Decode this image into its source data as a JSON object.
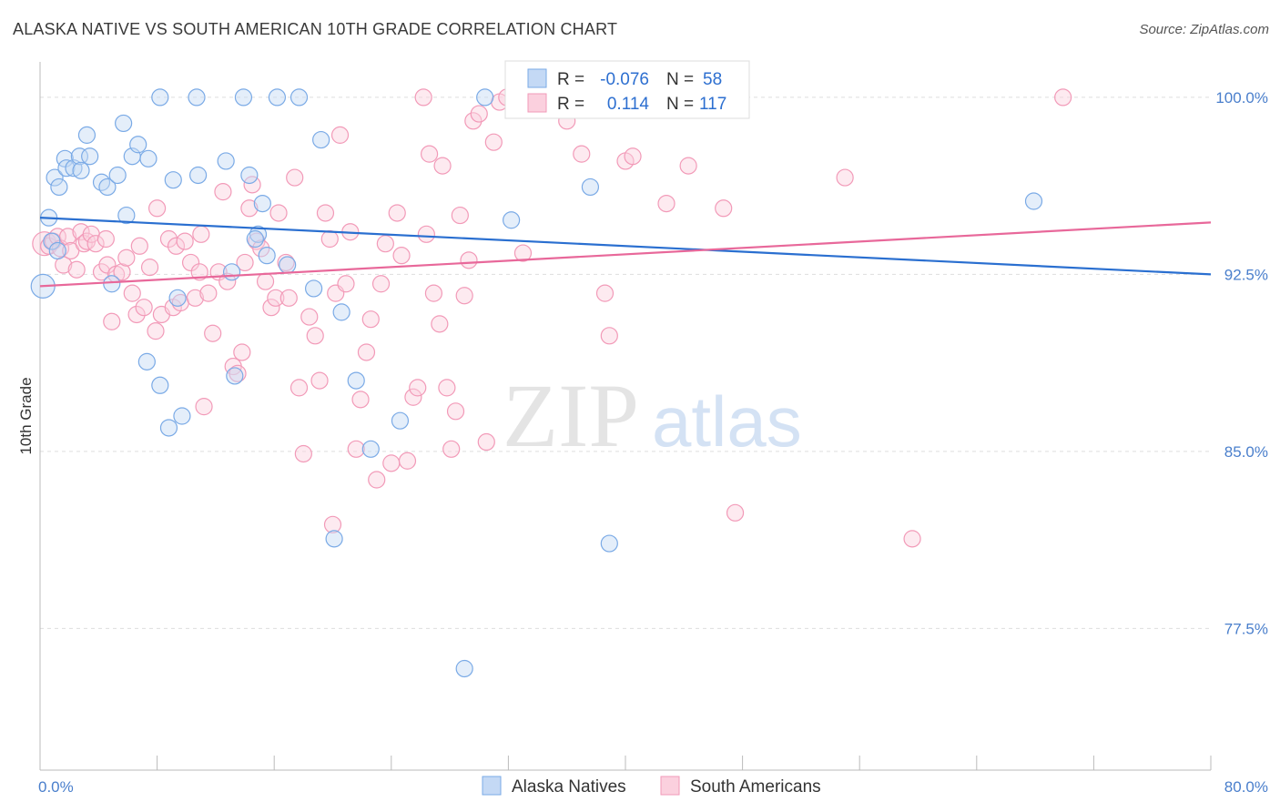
{
  "title": "ALASKA NATIVE VS SOUTH AMERICAN 10TH GRADE CORRELATION CHART",
  "source": "Source: ZipAtlas.com",
  "watermark": {
    "zip": "ZIP",
    "atlas": "atlas"
  },
  "legend_top": {
    "rows": [
      {
        "r_label": "R = ",
        "r_value": "-0.076",
        "n_label": "N = ",
        "n_value": "58"
      },
      {
        "r_label": "R = ",
        "r_value": "0.114",
        "n_label": "N = ",
        "n_value": "117"
      }
    ]
  },
  "legend_bottom": [
    "Alaska Natives",
    "South Americans"
  ],
  "chart_data": {
    "type": "scatter",
    "xlabel": "",
    "ylabel": "10th Grade",
    "xlim": [
      0,
      80
    ],
    "ylim": [
      71.5,
      101.5
    ],
    "x_tick_labels": [
      {
        "value": 0,
        "label": "0.0%"
      },
      {
        "value": 80,
        "label": "80.0%"
      }
    ],
    "y_tick_labels": [
      {
        "value": 100,
        "label": "100.0%"
      },
      {
        "value": 92.5,
        "label": "92.5%"
      },
      {
        "value": 85,
        "label": "85.0%"
      },
      {
        "value": 77.5,
        "label": "77.5%"
      }
    ],
    "colors": {
      "alaska": "#7aaae6",
      "south": "#f29ab8",
      "alaska_line": "#2a6fd0",
      "south_line": "#e8689a"
    },
    "series": [
      {
        "name": "Alaska Natives",
        "trend": {
          "x": [
            0,
            80
          ],
          "y": [
            94.9,
            92.5
          ]
        },
        "points": [
          [
            0.8,
            93.9
          ],
          [
            0.2,
            92.0
          ],
          [
            0.6,
            94.9
          ],
          [
            1.0,
            96.6
          ],
          [
            1.3,
            96.2
          ],
          [
            1.7,
            97.4
          ],
          [
            1.8,
            97.0
          ],
          [
            2.3,
            97.0
          ],
          [
            2.7,
            97.5
          ],
          [
            2.8,
            96.9
          ],
          [
            3.2,
            98.4
          ],
          [
            3.4,
            97.5
          ],
          [
            4.2,
            96.4
          ],
          [
            4.6,
            96.2
          ],
          [
            5.3,
            96.7
          ],
          [
            5.7,
            98.9
          ],
          [
            5.9,
            95.0
          ],
          [
            6.3,
            97.5
          ],
          [
            6.7,
            98.0
          ],
          [
            7.4,
            97.4
          ],
          [
            8.2,
            100.0
          ],
          [
            9.1,
            96.5
          ],
          [
            10.7,
            100.0
          ],
          [
            10.8,
            96.7
          ],
          [
            12.7,
            97.3
          ],
          [
            13.9,
            100.0
          ],
          [
            14.3,
            96.7
          ],
          [
            15.2,
            95.5
          ],
          [
            16.2,
            100.0
          ],
          [
            17.7,
            100.0
          ],
          [
            19.2,
            98.2
          ],
          [
            14.9,
            94.2
          ],
          [
            14.7,
            94.0
          ],
          [
            16.9,
            92.9
          ],
          [
            13.1,
            92.6
          ],
          [
            4.9,
            92.1
          ],
          [
            9.4,
            91.5
          ],
          [
            18.7,
            91.9
          ],
          [
            20.6,
            90.9
          ],
          [
            7.3,
            88.8
          ],
          [
            8.2,
            87.8
          ],
          [
            13.3,
            88.2
          ],
          [
            21.6,
            88.0
          ],
          [
            8.8,
            86.0
          ],
          [
            9.7,
            86.5
          ],
          [
            22.6,
            85.1
          ],
          [
            24.6,
            86.3
          ],
          [
            20.1,
            81.3
          ],
          [
            32.2,
            94.8
          ],
          [
            37.6,
            96.2
          ],
          [
            30.4,
            100.0
          ],
          [
            38.9,
            81.1
          ],
          [
            29.0,
            75.8
          ],
          [
            42.0,
            100.0
          ],
          [
            43.1,
            100.0
          ],
          [
            67.9,
            95.6
          ],
          [
            1.2,
            93.5
          ],
          [
            15.5,
            93.3
          ]
        ]
      },
      {
        "name": "South Americans",
        "trend": {
          "x": [
            0,
            80
          ],
          "y": [
            92.0,
            94.7
          ]
        },
        "points": [
          [
            0.3,
            93.8
          ],
          [
            0.6,
            93.7
          ],
          [
            0.9,
            93.9
          ],
          [
            1.2,
            94.1
          ],
          [
            1.4,
            93.6
          ],
          [
            1.6,
            92.9
          ],
          [
            1.9,
            94.1
          ],
          [
            2.1,
            93.5
          ],
          [
            2.5,
            92.7
          ],
          [
            2.8,
            94.3
          ],
          [
            3.0,
            93.8
          ],
          [
            3.2,
            93.9
          ],
          [
            3.5,
            94.2
          ],
          [
            3.8,
            93.8
          ],
          [
            4.2,
            92.6
          ],
          [
            4.6,
            92.9
          ],
          [
            4.9,
            90.5
          ],
          [
            5.2,
            92.5
          ],
          [
            5.6,
            92.6
          ],
          [
            5.9,
            93.2
          ],
          [
            6.3,
            91.7
          ],
          [
            6.6,
            90.8
          ],
          [
            6.8,
            93.7
          ],
          [
            7.1,
            91.1
          ],
          [
            7.5,
            92.8
          ],
          [
            7.9,
            90.1
          ],
          [
            8.0,
            95.3
          ],
          [
            8.3,
            90.8
          ],
          [
            8.8,
            94.0
          ],
          [
            9.1,
            91.1
          ],
          [
            9.3,
            93.7
          ],
          [
            9.6,
            91.3
          ],
          [
            9.9,
            93.9
          ],
          [
            10.3,
            93.0
          ],
          [
            10.6,
            91.5
          ],
          [
            10.9,
            92.6
          ],
          [
            11.2,
            86.9
          ],
          [
            11.5,
            91.7
          ],
          [
            11.8,
            90.0
          ],
          [
            12.2,
            92.6
          ],
          [
            12.5,
            96.0
          ],
          [
            12.8,
            92.2
          ],
          [
            13.2,
            88.6
          ],
          [
            13.5,
            88.3
          ],
          [
            13.8,
            89.2
          ],
          [
            14.0,
            93.0
          ],
          [
            14.3,
            95.3
          ],
          [
            14.5,
            96.3
          ],
          [
            14.8,
            93.9
          ],
          [
            15.1,
            93.6
          ],
          [
            15.4,
            92.2
          ],
          [
            15.8,
            91.1
          ],
          [
            16.1,
            91.5
          ],
          [
            16.3,
            95.1
          ],
          [
            16.8,
            93.0
          ],
          [
            17.0,
            91.5
          ],
          [
            17.4,
            96.6
          ],
          [
            17.7,
            87.7
          ],
          [
            18.0,
            84.9
          ],
          [
            18.4,
            90.7
          ],
          [
            18.8,
            89.9
          ],
          [
            19.1,
            88.0
          ],
          [
            19.5,
            95.1
          ],
          [
            19.8,
            94.0
          ],
          [
            20.2,
            91.7
          ],
          [
            20.5,
            98.4
          ],
          [
            20.9,
            92.1
          ],
          [
            21.2,
            94.3
          ],
          [
            21.6,
            85.1
          ],
          [
            21.9,
            87.2
          ],
          [
            22.3,
            89.2
          ],
          [
            22.6,
            90.6
          ],
          [
            23.0,
            83.8
          ],
          [
            23.3,
            92.1
          ],
          [
            23.6,
            93.8
          ],
          [
            24.0,
            84.5
          ],
          [
            24.4,
            95.1
          ],
          [
            24.7,
            93.3
          ],
          [
            25.1,
            84.6
          ],
          [
            25.5,
            87.3
          ],
          [
            25.8,
            87.7
          ],
          [
            26.2,
            100.0
          ],
          [
            26.4,
            94.2
          ],
          [
            26.6,
            97.6
          ],
          [
            26.9,
            91.7
          ],
          [
            27.3,
            90.4
          ],
          [
            27.5,
            97.1
          ],
          [
            27.8,
            87.7
          ],
          [
            28.1,
            85.1
          ],
          [
            28.4,
            86.7
          ],
          [
            28.7,
            95.0
          ],
          [
            29.0,
            91.6
          ],
          [
            29.3,
            93.1
          ],
          [
            29.6,
            99.0
          ],
          [
            30.0,
            99.3
          ],
          [
            30.5,
            85.4
          ],
          [
            31.0,
            98.1
          ],
          [
            31.4,
            99.8
          ],
          [
            31.9,
            100.0
          ],
          [
            20.0,
            81.9
          ],
          [
            37.0,
            97.6
          ],
          [
            38.6,
            91.7
          ],
          [
            38.9,
            89.9
          ],
          [
            40.0,
            97.3
          ],
          [
            40.5,
            97.5
          ],
          [
            42.8,
            95.5
          ],
          [
            43.6,
            99.8
          ],
          [
            44.3,
            97.1
          ],
          [
            46.7,
            95.3
          ],
          [
            47.5,
            82.4
          ],
          [
            55.0,
            96.6
          ],
          [
            59.6,
            81.3
          ],
          [
            69.9,
            100.0
          ],
          [
            33.0,
            93.4
          ],
          [
            36.0,
            99.0
          ],
          [
            11.0,
            94.2
          ],
          [
            4.5,
            94.0
          ]
        ]
      }
    ]
  }
}
